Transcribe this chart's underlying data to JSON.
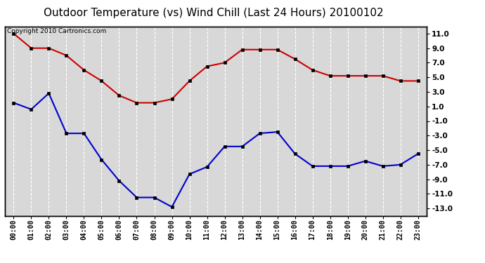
{
  "title": "Outdoor Temperature (vs) Wind Chill (Last 24 Hours) 20100102",
  "copyright_text": "Copyright 2010 Cartronics.com",
  "hours": [
    "00:00",
    "01:00",
    "02:00",
    "03:00",
    "04:00",
    "05:00",
    "06:00",
    "07:00",
    "08:00",
    "09:00",
    "10:00",
    "11:00",
    "12:00",
    "13:00",
    "14:00",
    "15:00",
    "16:00",
    "17:00",
    "18:00",
    "19:00",
    "20:00",
    "21:00",
    "22:00",
    "23:00"
  ],
  "red_line": [
    11.0,
    9.0,
    9.0,
    8.0,
    6.0,
    4.5,
    2.5,
    1.5,
    1.5,
    2.0,
    4.5,
    6.5,
    7.0,
    8.8,
    8.8,
    8.8,
    7.5,
    6.0,
    5.2,
    5.2,
    5.2,
    5.2,
    4.5,
    4.5
  ],
  "blue_line": [
    1.5,
    0.6,
    2.8,
    -2.7,
    -2.7,
    -6.3,
    -9.2,
    -11.5,
    -11.5,
    -12.8,
    -8.3,
    -7.3,
    -4.5,
    -4.5,
    -2.7,
    -2.5,
    -5.5,
    -7.2,
    -7.2,
    -7.2,
    -6.5,
    -7.2,
    -7.0,
    -5.5
  ],
  "red_color": "#cc0000",
  "blue_color": "#0000cc",
  "bg_color": "#ffffff",
  "plot_bg_color": "#d8d8d8",
  "grid_color": "#ffffff",
  "ylim": [
    -14.0,
    12.0
  ],
  "yticks": [
    -13.0,
    -11.0,
    -9.0,
    -7.0,
    -5.0,
    -3.0,
    -1.0,
    1.0,
    3.0,
    5.0,
    7.0,
    9.0,
    11.0
  ],
  "title_fontsize": 11,
  "copyright_fontsize": 6.5,
  "marker_size": 3.5,
  "line_width": 1.5
}
